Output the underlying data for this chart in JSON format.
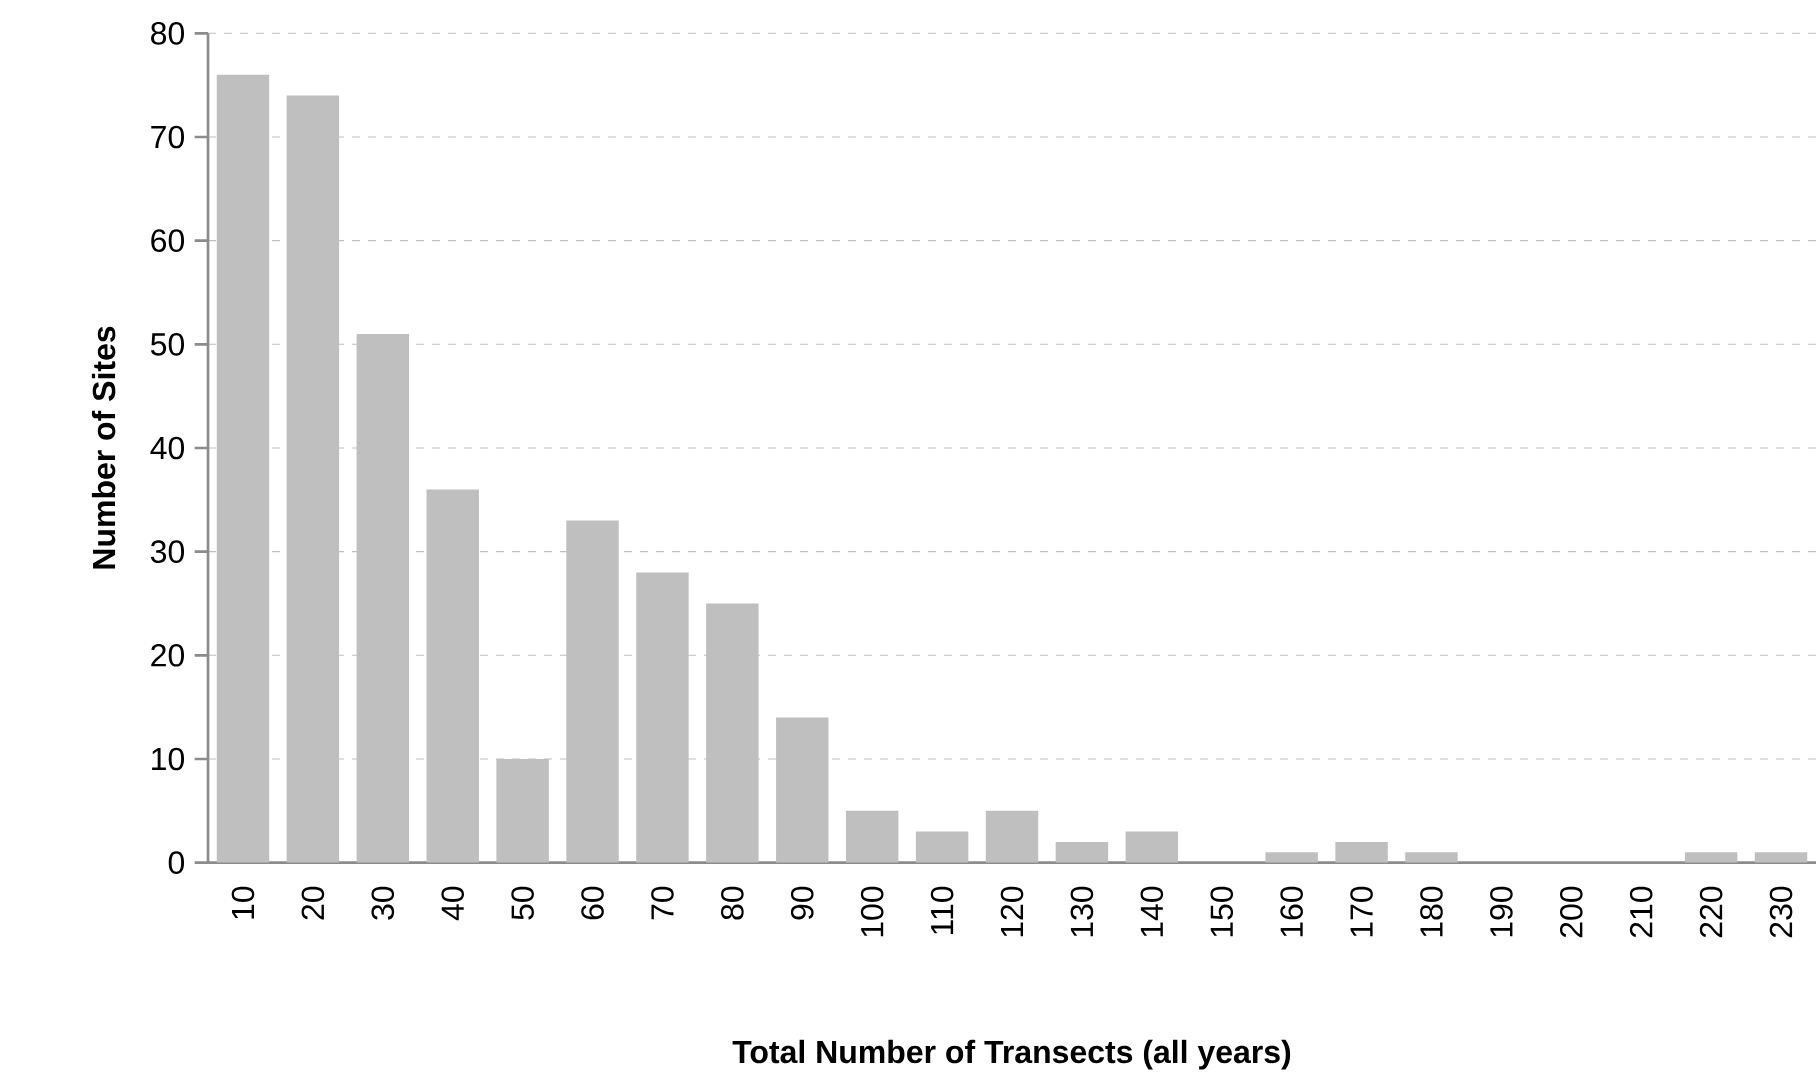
{
  "chart_data": {
    "type": "bar",
    "xlabel": "Total Number of Transects (all years)",
    "ylabel": "Number of Sites",
    "categories": [
      "10",
      "20",
      "30",
      "40",
      "50",
      "60",
      "70",
      "80",
      "90",
      "100",
      "110",
      "120",
      "130",
      "140",
      "150",
      "160",
      "170",
      "180",
      "190",
      "200",
      "210",
      "220",
      "230"
    ],
    "values": [
      76,
      74,
      51,
      36,
      10,
      33,
      28,
      25,
      14,
      5,
      3,
      5,
      2,
      3,
      0,
      1,
      2,
      1,
      0,
      0,
      0,
      1,
      1
    ],
    "color": "#bfbfbf",
    "ylim": [
      0,
      80
    ],
    "yticks": [
      0,
      10,
      20,
      30,
      40,
      50,
      60,
      70,
      80
    ],
    "grid": "y"
  }
}
